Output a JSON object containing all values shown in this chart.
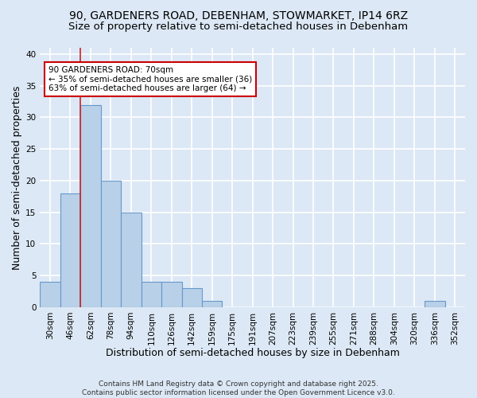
{
  "title_line1": "90, GARDENERS ROAD, DEBENHAM, STOWMARKET, IP14 6RZ",
  "title_line2": "Size of property relative to semi-detached houses in Debenham",
  "xlabel": "Distribution of semi-detached houses by size in Debenham",
  "ylabel": "Number of semi-detached properties",
  "footnote": "Contains HM Land Registry data © Crown copyright and database right 2025.\nContains public sector information licensed under the Open Government Licence v3.0.",
  "bar_labels": [
    "30sqm",
    "46sqm",
    "62sqm",
    "78sqm",
    "94sqm",
    "110sqm",
    "126sqm",
    "142sqm",
    "159sqm",
    "175sqm",
    "191sqm",
    "207sqm",
    "223sqm",
    "239sqm",
    "255sqm",
    "271sqm",
    "288sqm",
    "304sqm",
    "320sqm",
    "336sqm",
    "352sqm"
  ],
  "bar_values": [
    4,
    18,
    32,
    20,
    15,
    4,
    4,
    3,
    1,
    0,
    0,
    0,
    0,
    0,
    0,
    0,
    0,
    0,
    0,
    1,
    0
  ],
  "bar_color": "#b8d0e8",
  "bar_edge_color": "#6699cc",
  "red_line_bin_index": 2,
  "annotation_text": "90 GARDENERS ROAD: 70sqm\n← 35% of semi-detached houses are smaller (36)\n63% of semi-detached houses are larger (64) →",
  "annotation_box_facecolor": "#ffffff",
  "annotation_box_edgecolor": "#cc0000",
  "ylim": [
    0,
    41
  ],
  "yticks": [
    0,
    5,
    10,
    15,
    20,
    25,
    30,
    35,
    40
  ],
  "background_color": "#dce8f5",
  "grid_color": "#ffffff",
  "title_fontsize": 10,
  "subtitle_fontsize": 9.5,
  "axis_label_fontsize": 9,
  "tick_fontsize": 7.5,
  "footnote_fontsize": 6.5
}
